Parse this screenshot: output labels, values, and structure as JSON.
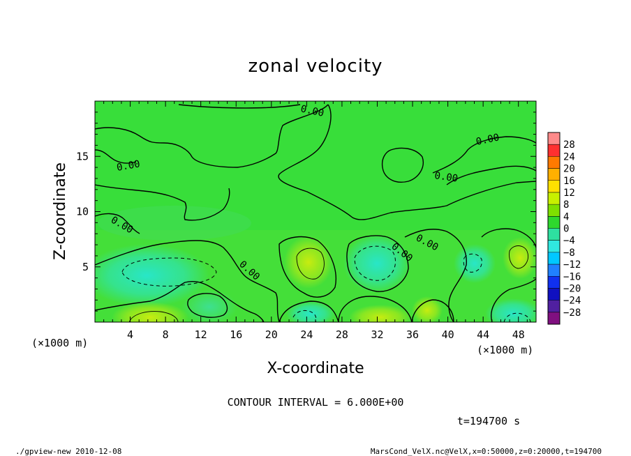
{
  "chart_data": {
    "type": "heatmap",
    "title": "zonal velocity",
    "xlabel": "X-coordinate",
    "ylabel": "Z-coordinate",
    "x_unit": "(×1000 m)",
    "x_unit_right": "(×1000 m)",
    "xlim": [
      0,
      50
    ],
    "ylim": [
      0,
      20
    ],
    "x_ticks": [
      "4",
      "8",
      "12",
      "16",
      "20",
      "24",
      "28",
      "32",
      "36",
      "40",
      "44",
      "48"
    ],
    "x_tick_values": [
      4,
      8,
      12,
      16,
      20,
      24,
      28,
      32,
      36,
      40,
      44,
      48
    ],
    "y_ticks": [
      "5",
      "10",
      "15"
    ],
    "y_tick_values": [
      5,
      10,
      15
    ],
    "colorbar": {
      "levels": [
        "28",
        "24",
        "20",
        "16",
        "12",
        "8",
        "4",
        "0",
        "−4",
        "−8",
        "−12",
        "−16",
        "−20",
        "−24",
        "−28"
      ],
      "colors": [
        "#ff8a8a",
        "#ff3030",
        "#ff7a00",
        "#ffb000",
        "#ffe000",
        "#c8f000",
        "#7ee000",
        "#2ed82e",
        "#2ee0a0",
        "#30e8e0",
        "#00c8ff",
        "#2080ff",
        "#1030f0",
        "#1010c0",
        "#5020a0",
        "#801080"
      ]
    },
    "contour_interval_text": "CONTOUR INTERVAL = 6.000E+00",
    "contour_labels": [
      "0.00",
      "0.00",
      "0.00",
      "0.00",
      "0.00",
      "0.00",
      "0.00",
      "0.00"
    ],
    "time_text": "t=194700 s",
    "footer_left": "./gpview-new  2010-12-08",
    "footer_right": "MarsCond_VelX.nc@VelX,x=0:50000,z=0:20000,t=194700"
  }
}
